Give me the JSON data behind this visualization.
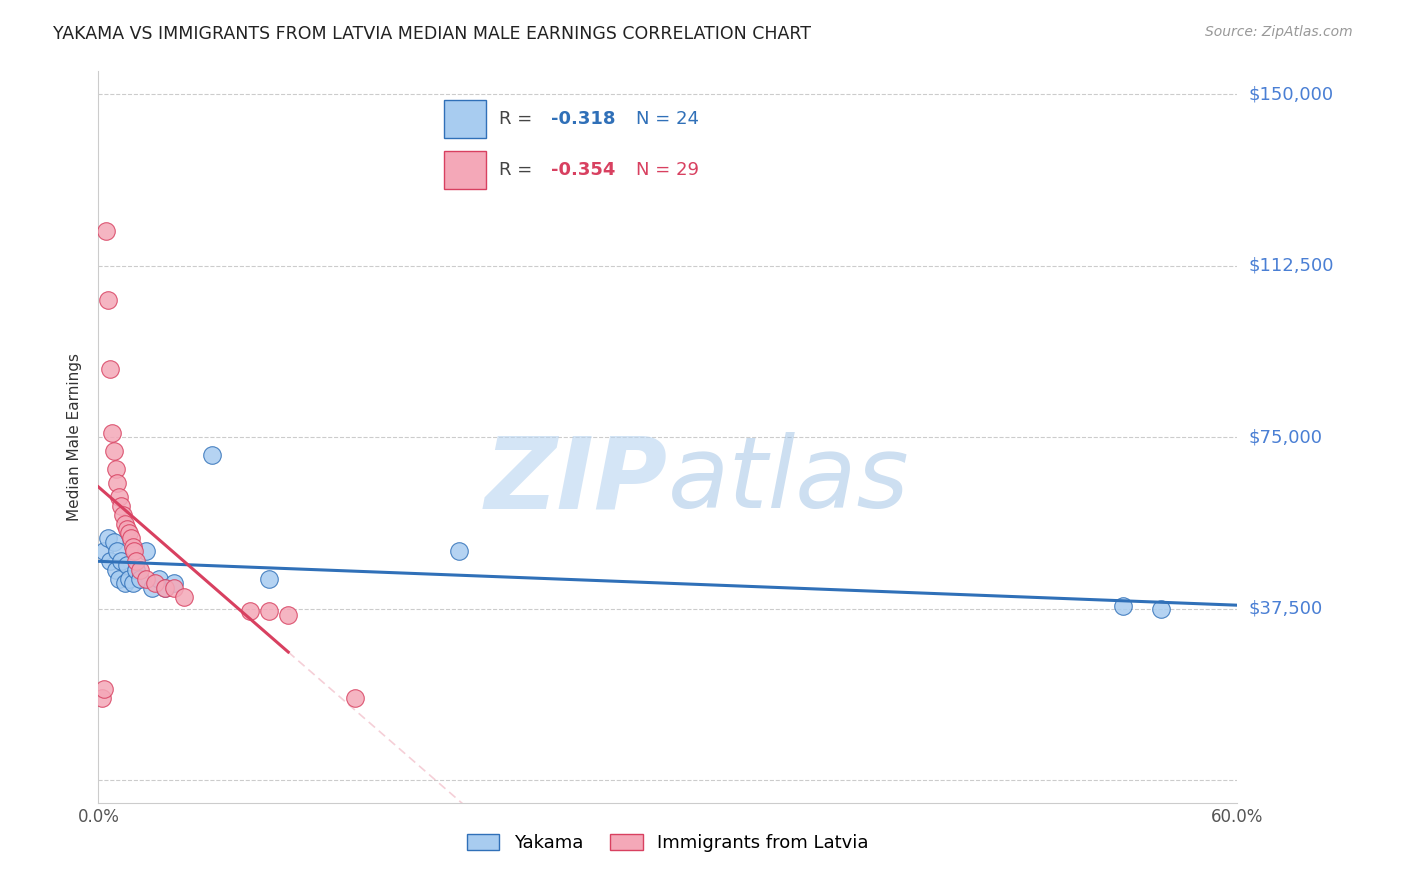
{
  "title": "YAKAMA VS IMMIGRANTS FROM LATVIA MEDIAN MALE EARNINGS CORRELATION CHART",
  "source": "Source: ZipAtlas.com",
  "ylabel": "Median Male Earnings",
  "xlim": [
    0.0,
    0.6
  ],
  "ylim": [
    -5000,
    155000
  ],
  "yticks": [
    0,
    37500,
    75000,
    112500,
    150000
  ],
  "ytick_labels": [
    "",
    "$37,500",
    "$75,000",
    "$112,500",
    "$150,000"
  ],
  "xticks": [
    0.0,
    0.1,
    0.2,
    0.3,
    0.4,
    0.5,
    0.6
  ],
  "xtick_labels": [
    "0.0%",
    "",
    "",
    "",
    "",
    "",
    "60.0%"
  ],
  "yakama_color": "#a8ccf0",
  "latvia_color": "#f4a8b8",
  "yakama_line_color": "#3070b8",
  "latvia_line_color": "#d84060",
  "yakama_x": [
    0.003,
    0.005,
    0.006,
    0.008,
    0.009,
    0.01,
    0.011,
    0.012,
    0.014,
    0.015,
    0.016,
    0.018,
    0.02,
    0.022,
    0.025,
    0.028,
    0.032,
    0.035,
    0.04,
    0.06,
    0.09,
    0.19,
    0.54,
    0.56
  ],
  "yakama_y": [
    50000,
    53000,
    48000,
    52000,
    46000,
    50000,
    44000,
    48000,
    43000,
    47000,
    44000,
    43000,
    46000,
    44000,
    50000,
    42000,
    44000,
    42000,
    43000,
    71000,
    44000,
    50000,
    38000,
    37500
  ],
  "latvia_x": [
    0.002,
    0.003,
    0.004,
    0.005,
    0.006,
    0.007,
    0.008,
    0.009,
    0.01,
    0.011,
    0.012,
    0.013,
    0.014,
    0.015,
    0.016,
    0.017,
    0.018,
    0.019,
    0.02,
    0.022,
    0.025,
    0.03,
    0.035,
    0.04,
    0.045,
    0.08,
    0.09,
    0.1,
    0.135
  ],
  "latvia_y": [
    18000,
    20000,
    120000,
    105000,
    90000,
    76000,
    72000,
    68000,
    65000,
    62000,
    60000,
    58000,
    56000,
    55000,
    54000,
    53000,
    51000,
    50000,
    48000,
    46000,
    44000,
    43000,
    42000,
    42000,
    40000,
    37000,
    37000,
    36000,
    18000
  ],
  "watermark_zip": "ZIP",
  "watermark_atlas": "atlas",
  "background_color": "#ffffff",
  "grid_color": "#cccccc",
  "yakama_R": -0.318,
  "yakama_N": 24,
  "latvia_R": -0.354,
  "latvia_N": 29
}
